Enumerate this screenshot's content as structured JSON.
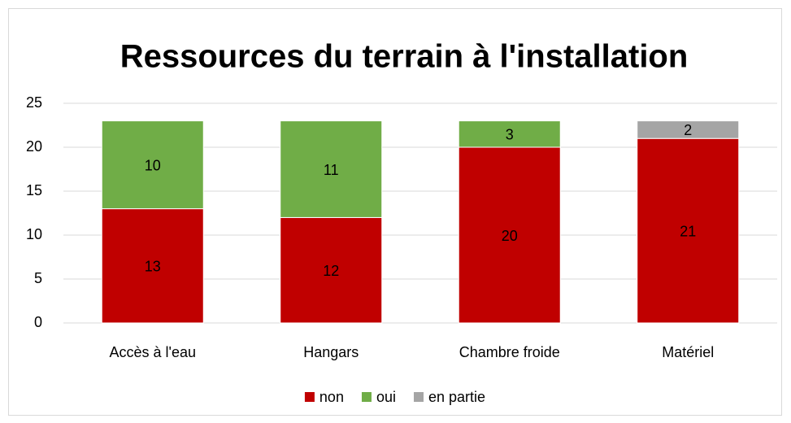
{
  "chart_data": {
    "type": "stacked_bar",
    "title": "Ressources du terrain à l'installation",
    "categories": [
      "Accès à l'eau",
      "Hangars",
      "Chambre froide",
      "Matériel"
    ],
    "series": [
      {
        "name": "non",
        "color": "#c00000",
        "values": [
          13,
          12,
          20,
          21
        ]
      },
      {
        "name": "oui",
        "color": "#70ad47",
        "values": [
          10,
          11,
          3,
          null
        ]
      },
      {
        "name": "en partie",
        "color": "#a5a5a5",
        "values": [
          null,
          null,
          null,
          2
        ]
      }
    ],
    "ylim": [
      0,
      25
    ],
    "yticks": [
      0,
      5,
      10,
      15,
      20,
      25
    ],
    "grid": true,
    "legend": "bottom"
  }
}
